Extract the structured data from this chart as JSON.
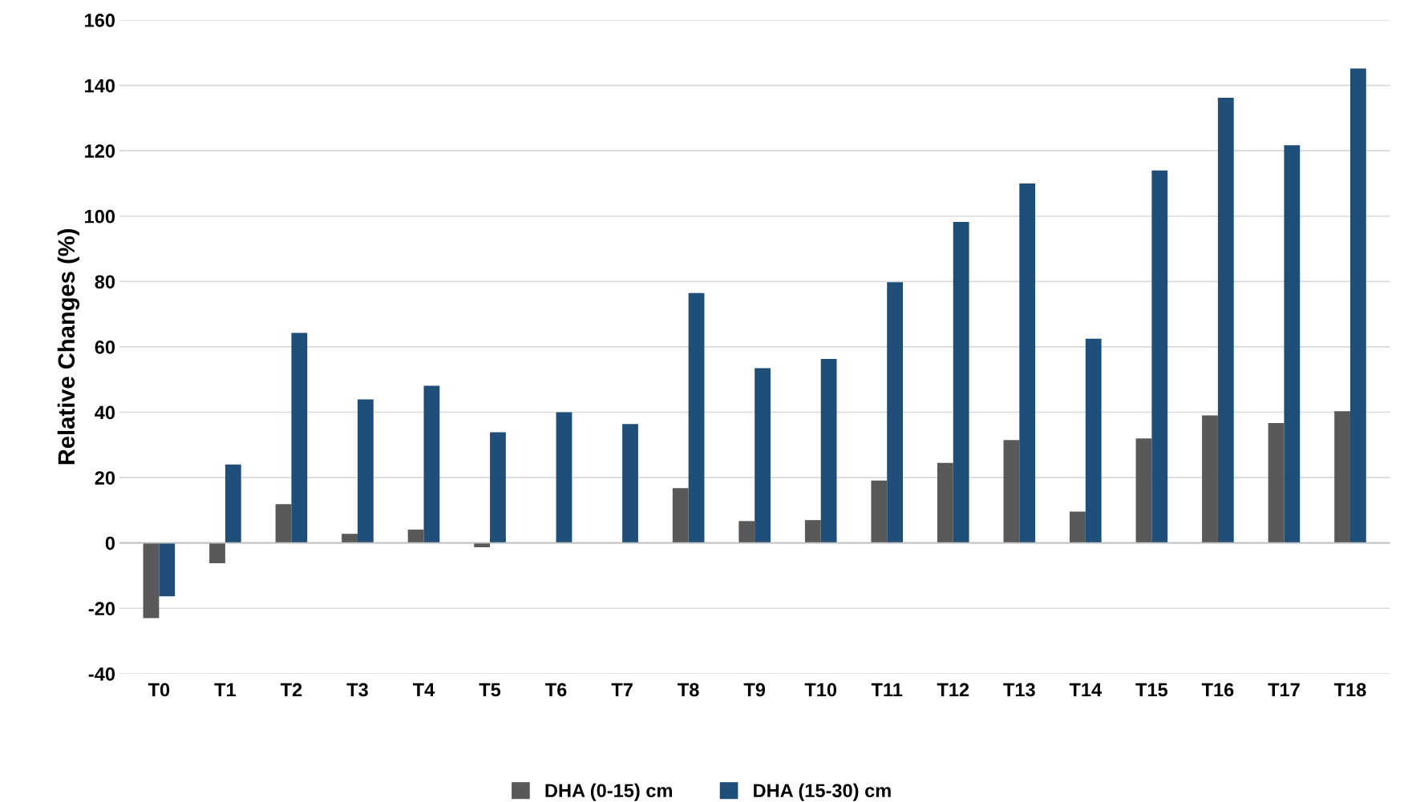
{
  "chart_data": {
    "type": "bar",
    "ylabel": "Relative Changes (%)",
    "categories": [
      "T0",
      "T1",
      "T2",
      "T3",
      "T4",
      "T5",
      "T6",
      "T7",
      "T8",
      "T9",
      "T10",
      "T11",
      "T12",
      "T13",
      "T14",
      "T15",
      "T16",
      "T17",
      "T18"
    ],
    "series": [
      {
        "name": "DHA (0-15) cm",
        "color": "#595959",
        "values": [
          -23,
          -6.2,
          11.9,
          2.8,
          4.1,
          -1.3,
          null,
          0,
          16.8,
          6.7,
          7,
          19.1,
          24.5,
          31.5,
          9.6,
          32,
          39,
          36.7,
          40.3
        ]
      },
      {
        "name": "DHA (15-30) cm",
        "color": "#1f4e79",
        "values": [
          -16.3,
          24,
          64.3,
          43.9,
          48.1,
          33.9,
          40,
          36.4,
          76.5,
          53.5,
          56.3,
          79.8,
          98.2,
          110,
          62.5,
          114,
          136.2,
          121.7,
          145.2
        ]
      }
    ],
    "ylim": [
      -40,
      160
    ],
    "yticks": [
      -40,
      -20,
      0,
      20,
      40,
      60,
      80,
      100,
      120,
      140,
      160
    ],
    "grid": "y",
    "legend": "bottom"
  }
}
